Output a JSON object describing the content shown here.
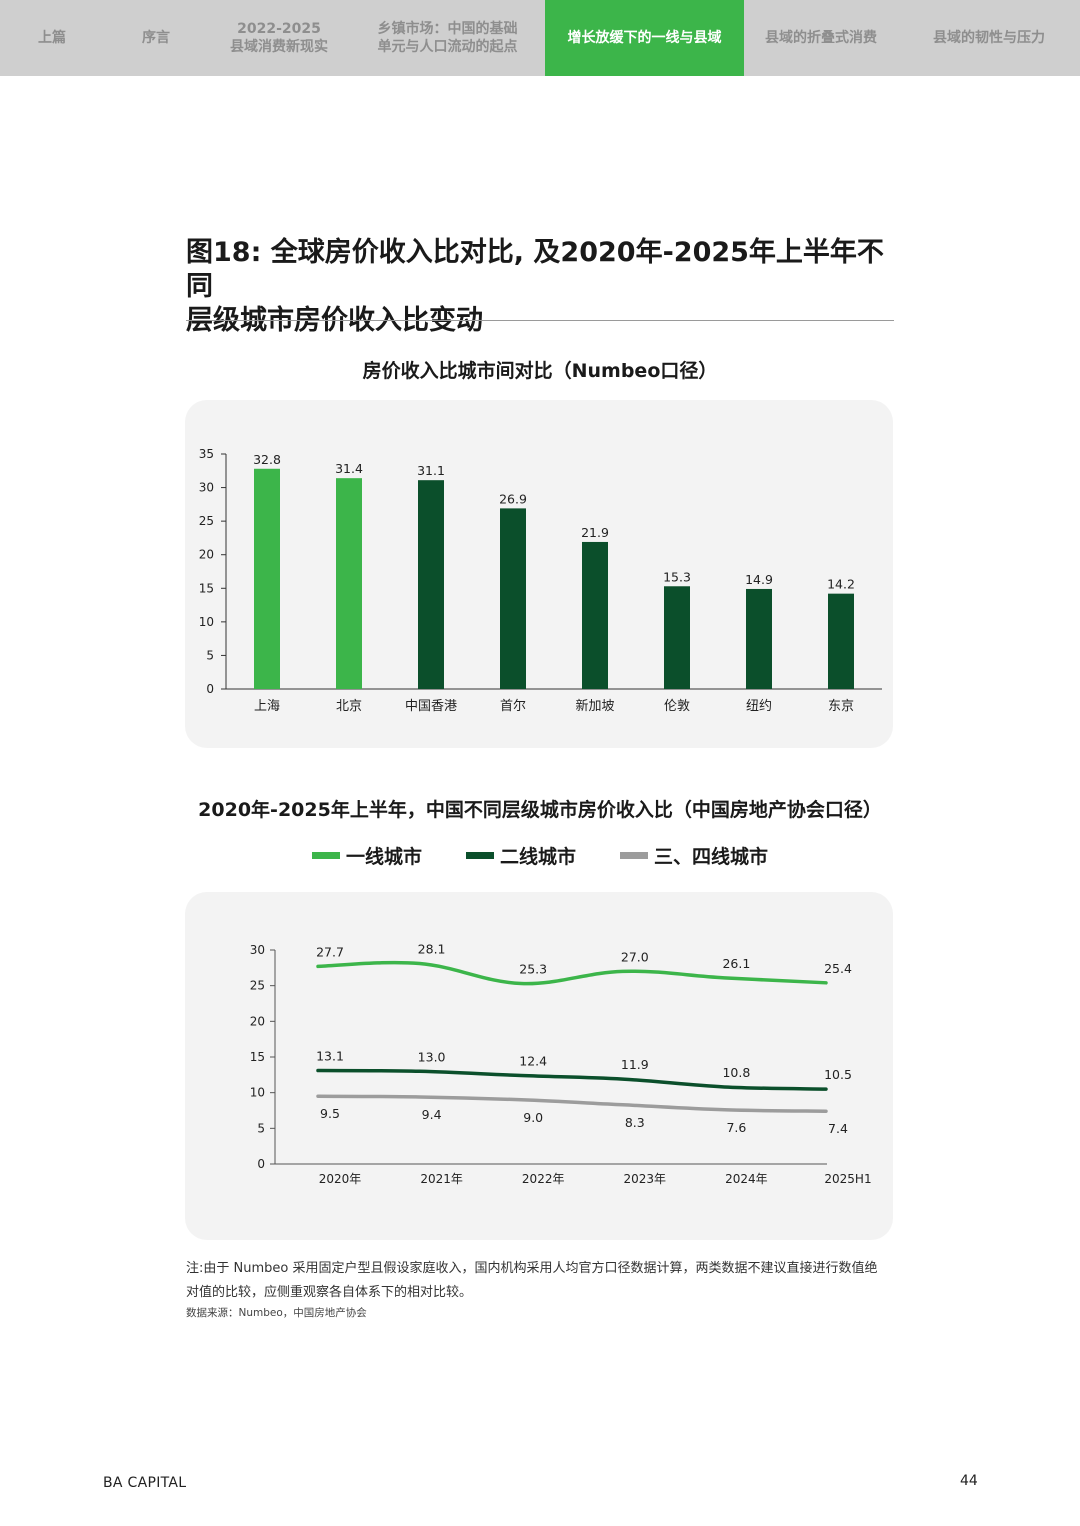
{
  "nav": {
    "tabs": [
      {
        "label": "上篇",
        "active": false
      },
      {
        "label": "序言",
        "active": false
      },
      {
        "label": "2022-2025\n县域消费新现实",
        "active": false
      },
      {
        "label": "乡镇市场：中国的基础\n单元与人口流动的起点",
        "active": false
      },
      {
        "label": "增长放缓下的一线与县域",
        "active": true
      },
      {
        "label": "县域的折叠式消费",
        "active": false
      },
      {
        "label": "县域的韧性与压力",
        "active": false
      }
    ],
    "active_color": "#3cb54a"
  },
  "figure": {
    "title": "图18: 全球房价收入比对比, 及2020年-2025年上半年不同\n层级城市房价收入比变动"
  },
  "chart_data": [
    {
      "type": "bar",
      "title": "房价收入比城市间对比（Numbeo口径）",
      "categories": [
        "上海",
        "北京",
        "中国香港",
        "首尔",
        "新加坡",
        "伦敦",
        "纽约",
        "东京"
      ],
      "values": [
        32.8,
        31.4,
        31.1,
        26.9,
        21.9,
        15.3,
        14.9,
        14.2
      ],
      "value_labels": [
        "32.8",
        "31.4",
        "31.1",
        "26.9",
        "21.9",
        "15.3",
        "14.9",
        "14.2"
      ],
      "bar_colors": [
        "#3cb54a",
        "#3cb54a",
        "#0b4f2b",
        "#0b4f2b",
        "#0b4f2b",
        "#0b4f2b",
        "#0b4f2b",
        "#0b4f2b"
      ],
      "ylim": [
        0,
        35
      ],
      "yticks": [
        "0",
        "5",
        "10",
        "15",
        "20",
        "25",
        "30",
        "35"
      ],
      "grid": false
    },
    {
      "type": "line",
      "title": "2020年-2025年上半年，中国不同层级城市房价收入比（中国房地产协会口径）",
      "x": [
        "2020年",
        "2021年",
        "2022年",
        "2023年",
        "2024年",
        "2025H1"
      ],
      "series": [
        {
          "name": "一线城市",
          "color": "#3cb54a",
          "values": [
            27.7,
            28.1,
            25.3,
            27.0,
            26.1,
            25.4
          ],
          "labels": [
            "27.7",
            "28.1",
            "25.3",
            "27.0",
            "26.1",
            "25.4"
          ]
        },
        {
          "name": "二线城市",
          "color": "#0b4f2b",
          "values": [
            13.1,
            13.0,
            12.4,
            11.9,
            10.8,
            10.5
          ],
          "labels": [
            "13.1",
            "13.0",
            "12.4",
            "11.9",
            "10.8",
            "10.5"
          ]
        },
        {
          "name": "三、四线城市",
          "color": "#9c9c9c",
          "values": [
            9.5,
            9.4,
            9.0,
            8.3,
            7.6,
            7.4
          ],
          "labels": [
            "9.5",
            "9.4",
            "9.0",
            "8.3",
            "7.6",
            "7.4"
          ]
        }
      ],
      "ylim": [
        0,
        30
      ],
      "yticks": [
        "0",
        "5",
        "10",
        "15",
        "20",
        "25",
        "30"
      ],
      "legend_position": "top-center",
      "grid": false
    }
  ],
  "footer": {
    "note": "注:由于 Numbeo 采用固定户型且假设家庭收入，国内机构采用人均官方口径数据计算，两类数据不建议直接进行数值绝对值的比较，应侧重观察各自体系下的相对比较。",
    "source": "数据来源：Numbeo，中国房地产协会",
    "brand": "BA CAPITAL",
    "page": "44"
  }
}
